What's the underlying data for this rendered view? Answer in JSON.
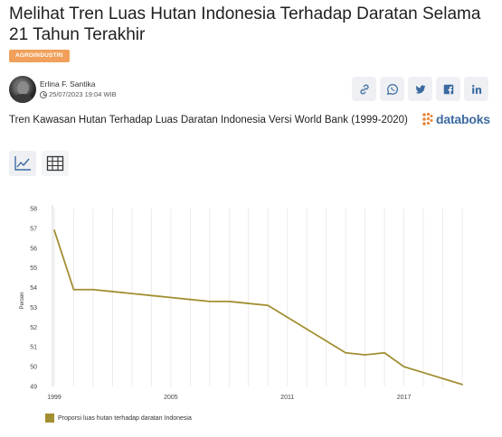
{
  "article": {
    "title": "Melihat Tren Luas Hutan Indonesia Terhadap Daratan Selama 21 Tahun Terakhir",
    "category": "AGROINDUSTRI",
    "author": "Erlina F. Santika",
    "date": "25/07/2023 19:04 WIB"
  },
  "share": {
    "icons": [
      "link-icon",
      "whatsapp-icon",
      "twitter-icon",
      "facebook-icon",
      "linkedin-icon"
    ]
  },
  "chart_header": {
    "title": "Tren Kawasan Hutan Terhadap Luas Daratan Indonesia Versi World Bank (1999-2020)",
    "brand": "databoks",
    "brand_color": "#3b6aa0"
  },
  "view_toggle": {
    "options": [
      "chart-view",
      "table-view"
    ],
    "selected": "chart-view"
  },
  "chart_data": {
    "type": "line",
    "x": [
      1999,
      2000,
      2001,
      2002,
      2003,
      2004,
      2005,
      2006,
      2007,
      2008,
      2009,
      2010,
      2011,
      2012,
      2013,
      2014,
      2015,
      2016,
      2017,
      2018,
      2019,
      2020
    ],
    "series": [
      {
        "name": "Proporsi luas hutan terhadap daratan Indonesia",
        "values": [
          56.9,
          53.9,
          53.9,
          53.8,
          53.7,
          53.6,
          53.5,
          53.4,
          53.3,
          53.3,
          53.2,
          53.1,
          52.5,
          51.9,
          51.3,
          50.7,
          50.6,
          50.7,
          50.0,
          49.7,
          49.4,
          49.1
        ],
        "color": "#a28f32"
      }
    ],
    "xticks": [
      "1999",
      "2005",
      "2011",
      "2017"
    ],
    "xtick_values": [
      1999,
      2005,
      2011,
      2017
    ],
    "yticks": [
      "49",
      "50",
      "51",
      "52",
      "53",
      "54",
      "55",
      "56",
      "57",
      "58"
    ],
    "ylabel": "Persen",
    "xlabel": "",
    "ylim": [
      49,
      58
    ],
    "xlim": [
      1999,
      2020
    ],
    "grid": "vertical",
    "legend": "bottom-left"
  }
}
